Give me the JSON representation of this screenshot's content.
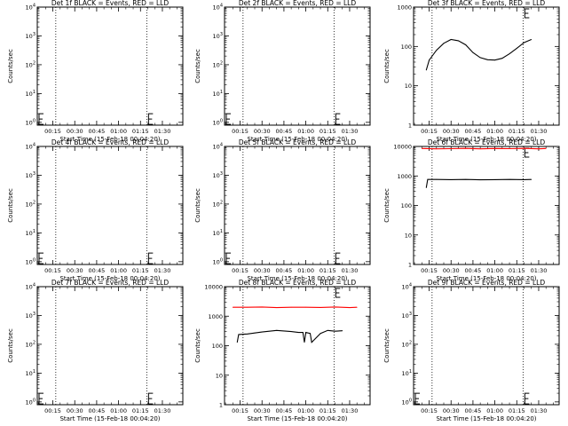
{
  "xlabel": "Start Time (15-Feb-18 00:04:20)",
  "ylabel": "Counts/sec",
  "time_ticks": [
    "00:15",
    "00:30",
    "00:45",
    "01:00",
    "01:15",
    "01:30"
  ],
  "colors": {
    "events": "#000000",
    "lld": "#ff0000"
  },
  "chart_data": [
    {
      "type": "line",
      "title": "Det 1f BLACK = Events, RED = LLD",
      "ylim": [
        0.8,
        10000
      ],
      "yticks": [
        "10^0",
        "10^1",
        "10^2",
        "10^3",
        "10^4"
      ],
      "series": []
    },
    {
      "type": "line",
      "title": "Det 2f BLACK = Events, RED = LLD",
      "ylim": [
        0.8,
        10000
      ],
      "yticks": [
        "10^0",
        "10^1",
        "10^2",
        "10^3",
        "10^4"
      ],
      "series": []
    },
    {
      "type": "line",
      "title": "Det 3f BLACK = Events, RED = LLD",
      "ylim": [
        1,
        1000
      ],
      "yticks": [
        "1",
        "10",
        "100",
        "1000"
      ],
      "series": [
        {
          "color": "#000000",
          "x": [
            "00:13",
            "00:15",
            "00:20",
            "00:25",
            "00:30",
            "00:35",
            "00:40",
            "00:45",
            "00:50",
            "00:55",
            "01:00",
            "01:05",
            "01:10",
            "01:15",
            "01:20",
            "01:25"
          ],
          "y": [
            25,
            45,
            80,
            120,
            150,
            140,
            110,
            70,
            52,
            46,
            45,
            50,
            65,
            90,
            125,
            150
          ]
        }
      ]
    },
    {
      "type": "line",
      "title": "Det 4f BLACK = Events, RED = LLD",
      "ylim": [
        0.8,
        10000
      ],
      "yticks": [
        "10^0",
        "10^1",
        "10^2",
        "10^3",
        "10^4"
      ],
      "series": []
    },
    {
      "type": "line",
      "title": "Det 5f BLACK = Events, RED = LLD",
      "ylim": [
        0.8,
        10000
      ],
      "yticks": [
        "10^0",
        "10^1",
        "10^2",
        "10^3",
        "10^4"
      ],
      "series": []
    },
    {
      "type": "line",
      "title": "Det 6f BLACK = Events, RED = LLD",
      "ylim": [
        1,
        10000
      ],
      "yticks": [
        "1",
        "10",
        "100",
        "1000",
        "10000"
      ],
      "series": [
        {
          "color": "#ff0000",
          "x": [
            "00:10",
            "00:20",
            "00:30",
            "00:40",
            "00:50",
            "01:00",
            "01:10",
            "01:20",
            "01:30",
            "01:35"
          ],
          "y": [
            8500,
            8300,
            8400,
            8600,
            8300,
            8500,
            8400,
            8600,
            8300,
            8500
          ]
        },
        {
          "color": "#000000",
          "x": [
            "00:13",
            "00:14",
            "00:20",
            "00:30",
            "00:40",
            "00:50",
            "01:00",
            "01:10",
            "01:20",
            "01:25"
          ],
          "y": [
            400,
            760,
            760,
            750,
            760,
            740,
            750,
            760,
            750,
            760
          ]
        }
      ]
    },
    {
      "type": "line",
      "title": "Det 7f BLACK = Events, RED = LLD",
      "ylim": [
        0.8,
        10000
      ],
      "yticks": [
        "10^0",
        "10^1",
        "10^2",
        "10^3",
        "10^4"
      ],
      "series": []
    },
    {
      "type": "line",
      "title": "Det 8f BLACK = Events, RED = LLD",
      "ylim": [
        1,
        10000
      ],
      "yticks": [
        "1",
        "10",
        "100",
        "1000",
        "10000"
      ],
      "series": [
        {
          "color": "#ff0000",
          "x": [
            "00:10",
            "00:20",
            "00:30",
            "00:40",
            "00:50",
            "01:00",
            "01:10",
            "01:20",
            "01:30",
            "01:35"
          ],
          "y": [
            2000,
            2000,
            2050,
            1950,
            2000,
            2000,
            1980,
            2050,
            1950,
            2000
          ]
        },
        {
          "color": "#000000",
          "x": [
            "00:13",
            "00:14",
            "00:20",
            "00:25",
            "00:30",
            "00:40",
            "00:50",
            "00:55",
            "00:58",
            "00:59",
            "01:00",
            "01:03",
            "01:04",
            "01:10",
            "01:15",
            "01:20",
            "01:25"
          ],
          "y": [
            130,
            240,
            250,
            270,
            290,
            330,
            300,
            280,
            280,
            130,
            280,
            260,
            130,
            260,
            330,
            310,
            320
          ]
        }
      ]
    },
    {
      "type": "line",
      "title": "Det 9f BLACK = Events, RED = LLD",
      "ylim": [
        0.8,
        10000
      ],
      "yticks": [
        "10^0",
        "10^1",
        "10^2",
        "10^3",
        "10^4"
      ],
      "series": []
    }
  ]
}
